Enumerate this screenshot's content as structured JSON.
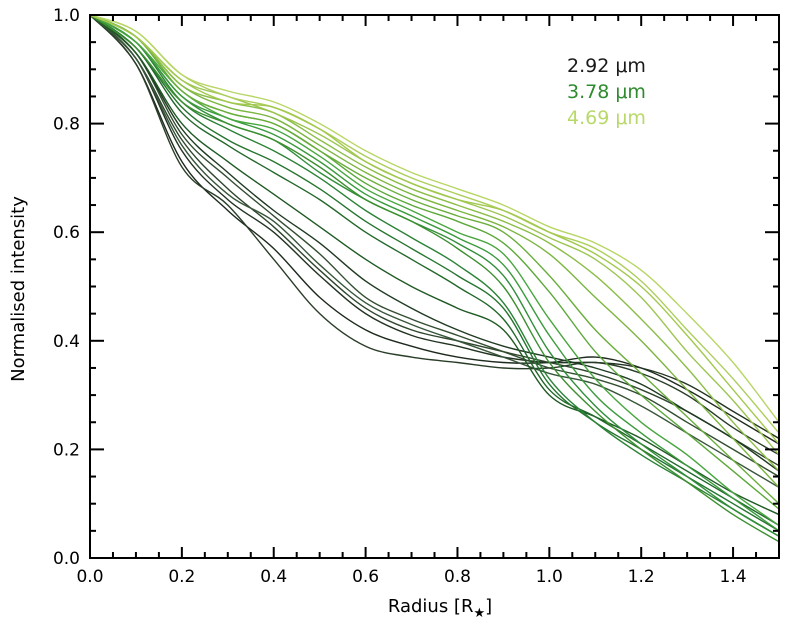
{
  "chart_data": {
    "type": "line",
    "title": "",
    "xlabel": "Radius [R",
    "xlabel_sub": "★",
    "xlabel_close": "]",
    "ylabel": "Normalised intensity",
    "xlim": [
      0.0,
      1.5
    ],
    "ylim": [
      0.0,
      1.0
    ],
    "x_ticks": [
      0.0,
      0.2,
      0.4,
      0.6,
      0.8,
      1.0,
      1.2,
      1.4
    ],
    "x_tick_labels": [
      "0.0",
      "0.2",
      "0.4",
      "0.6",
      "0.8",
      "1.0",
      "1.2",
      "1.4"
    ],
    "y_ticks": [
      0.0,
      0.2,
      0.4,
      0.6,
      0.8,
      1.0
    ],
    "y_tick_labels": [
      "0.0",
      "0.2",
      "0.4",
      "0.6",
      "0.8",
      "1.0"
    ],
    "x_minor_step": 0.05,
    "y_minor_step": 0.05,
    "legend": [
      {
        "label": "2.92 μm",
        "color": "#1a1a1a"
      },
      {
        "label": "3.78 μm",
        "color": "#2e8b2e"
      },
      {
        "label": "4.69 μm",
        "color": "#b8d96a"
      }
    ],
    "legend_position": "top-right",
    "x": [
      0.0,
      0.1,
      0.2,
      0.3,
      0.4,
      0.5,
      0.6,
      0.7,
      0.8,
      0.9,
      1.0,
      1.1,
      1.2,
      1.3,
      1.4,
      1.5
    ],
    "series": [
      {
        "name": "s01",
        "color": "#1e2a1e",
        "values": [
          1.0,
          0.91,
          0.73,
          0.64,
          0.57,
          0.48,
          0.42,
          0.39,
          0.37,
          0.36,
          0.36,
          0.37,
          0.35,
          0.31,
          0.26,
          0.21
        ]
      },
      {
        "name": "s02",
        "color": "#223322",
        "values": [
          1.0,
          0.92,
          0.75,
          0.66,
          0.6,
          0.52,
          0.45,
          0.41,
          0.39,
          0.37,
          0.36,
          0.36,
          0.35,
          0.32,
          0.27,
          0.22
        ]
      },
      {
        "name": "s03",
        "color": "#2a3d28",
        "values": [
          1.0,
          0.91,
          0.72,
          0.65,
          0.55,
          0.45,
          0.39,
          0.37,
          0.36,
          0.35,
          0.35,
          0.36,
          0.34,
          0.3,
          0.24,
          0.19
        ]
      },
      {
        "name": "s04",
        "color": "#2f452d",
        "values": [
          1.0,
          0.92,
          0.77,
          0.68,
          0.61,
          0.53,
          0.46,
          0.42,
          0.4,
          0.38,
          0.36,
          0.34,
          0.31,
          0.27,
          0.22,
          0.17
        ]
      },
      {
        "name": "s05",
        "color": "#334d31",
        "values": [
          1.0,
          0.93,
          0.78,
          0.7,
          0.63,
          0.56,
          0.48,
          0.44,
          0.41,
          0.38,
          0.35,
          0.33,
          0.3,
          0.25,
          0.2,
          0.15
        ]
      },
      {
        "name": "s06",
        "color": "#38553a",
        "values": [
          1.0,
          0.92,
          0.76,
          0.67,
          0.62,
          0.54,
          0.47,
          0.43,
          0.4,
          0.37,
          0.34,
          0.32,
          0.28,
          0.23,
          0.18,
          0.13
        ]
      },
      {
        "name": "s07",
        "color": "#1f3a22",
        "values": [
          1.0,
          0.93,
          0.79,
          0.71,
          0.64,
          0.58,
          0.51,
          0.46,
          0.42,
          0.39,
          0.37,
          0.35,
          0.32,
          0.27,
          0.22,
          0.16
        ]
      },
      {
        "name": "s08",
        "color": "#1f5a24",
        "values": [
          1.0,
          0.93,
          0.8,
          0.73,
          0.67,
          0.61,
          0.55,
          0.5,
          0.46,
          0.42,
          0.3,
          0.26,
          0.22,
          0.17,
          0.12,
          0.08
        ]
      },
      {
        "name": "s09",
        "color": "#22682a",
        "values": [
          1.0,
          0.94,
          0.82,
          0.76,
          0.71,
          0.66,
          0.6,
          0.55,
          0.5,
          0.44,
          0.31,
          0.26,
          0.21,
          0.16,
          0.11,
          0.06
        ]
      },
      {
        "name": "s10",
        "color": "#267530",
        "values": [
          1.0,
          0.94,
          0.83,
          0.77,
          0.73,
          0.68,
          0.62,
          0.57,
          0.52,
          0.46,
          0.32,
          0.25,
          0.2,
          0.15,
          0.1,
          0.05
        ]
      },
      {
        "name": "s11",
        "color": "#2b8236",
        "values": [
          1.0,
          0.95,
          0.84,
          0.79,
          0.75,
          0.7,
          0.64,
          0.59,
          0.54,
          0.47,
          0.33,
          0.25,
          0.19,
          0.14,
          0.09,
          0.04
        ]
      },
      {
        "name": "s12",
        "color": "#318e3a",
        "values": [
          1.0,
          0.95,
          0.85,
          0.8,
          0.77,
          0.71,
          0.66,
          0.62,
          0.58,
          0.52,
          0.38,
          0.28,
          0.21,
          0.15,
          0.09,
          0.04
        ]
      },
      {
        "name": "s13",
        "color": "#3a9a3c",
        "values": [
          1.0,
          0.95,
          0.85,
          0.81,
          0.78,
          0.73,
          0.67,
          0.63,
          0.59,
          0.54,
          0.41,
          0.3,
          0.23,
          0.17,
          0.11,
          0.05
        ]
      },
      {
        "name": "s14",
        "color": "#48a63f",
        "values": [
          1.0,
          0.95,
          0.86,
          0.81,
          0.79,
          0.74,
          0.68,
          0.64,
          0.6,
          0.56,
          0.44,
          0.33,
          0.25,
          0.19,
          0.12,
          0.06
        ]
      },
      {
        "name": "s15",
        "color": "#3b8f2f",
        "values": [
          1.0,
          0.94,
          0.84,
          0.8,
          0.77,
          0.72,
          0.66,
          0.62,
          0.57,
          0.5,
          0.36,
          0.27,
          0.2,
          0.14,
          0.08,
          0.03
        ]
      },
      {
        "name": "s16",
        "color": "#5ca83a",
        "values": [
          1.0,
          0.96,
          0.86,
          0.82,
          0.8,
          0.75,
          0.69,
          0.65,
          0.62,
          0.58,
          0.49,
          0.38,
          0.3,
          0.23,
          0.16,
          0.09
        ]
      },
      {
        "name": "s17",
        "color": "#6aae3c",
        "values": [
          1.0,
          0.96,
          0.86,
          0.82,
          0.8,
          0.75,
          0.7,
          0.66,
          0.63,
          0.6,
          0.52,
          0.42,
          0.34,
          0.26,
          0.18,
          0.1
        ]
      },
      {
        "name": "s18",
        "color": "#7cb540",
        "values": [
          1.0,
          0.96,
          0.87,
          0.83,
          0.81,
          0.76,
          0.71,
          0.67,
          0.64,
          0.61,
          0.56,
          0.48,
          0.4,
          0.31,
          0.22,
          0.13
        ]
      },
      {
        "name": "s19",
        "color": "#8cbd48",
        "values": [
          1.0,
          0.96,
          0.87,
          0.84,
          0.82,
          0.77,
          0.72,
          0.68,
          0.65,
          0.62,
          0.58,
          0.52,
          0.44,
          0.35,
          0.25,
          0.16
        ]
      },
      {
        "name": "s20",
        "color": "#9cc552",
        "values": [
          1.0,
          0.96,
          0.88,
          0.85,
          0.82,
          0.78,
          0.73,
          0.69,
          0.66,
          0.63,
          0.59,
          0.55,
          0.48,
          0.38,
          0.29,
          0.19
        ]
      },
      {
        "name": "s21",
        "color": "#acce5c",
        "values": [
          1.0,
          0.97,
          0.89,
          0.85,
          0.83,
          0.79,
          0.74,
          0.7,
          0.67,
          0.64,
          0.6,
          0.57,
          0.51,
          0.42,
          0.33,
          0.23
        ]
      },
      {
        "name": "s22",
        "color": "#b8d666",
        "values": [
          1.0,
          0.97,
          0.89,
          0.86,
          0.84,
          0.8,
          0.75,
          0.71,
          0.68,
          0.65,
          0.61,
          0.58,
          0.53,
          0.45,
          0.36,
          0.25
        ]
      },
      {
        "name": "s23",
        "color": "#a2c94e",
        "values": [
          1.0,
          0.96,
          0.88,
          0.84,
          0.83,
          0.79,
          0.73,
          0.69,
          0.66,
          0.64,
          0.6,
          0.56,
          0.5,
          0.41,
          0.31,
          0.21
        ]
      }
    ]
  }
}
